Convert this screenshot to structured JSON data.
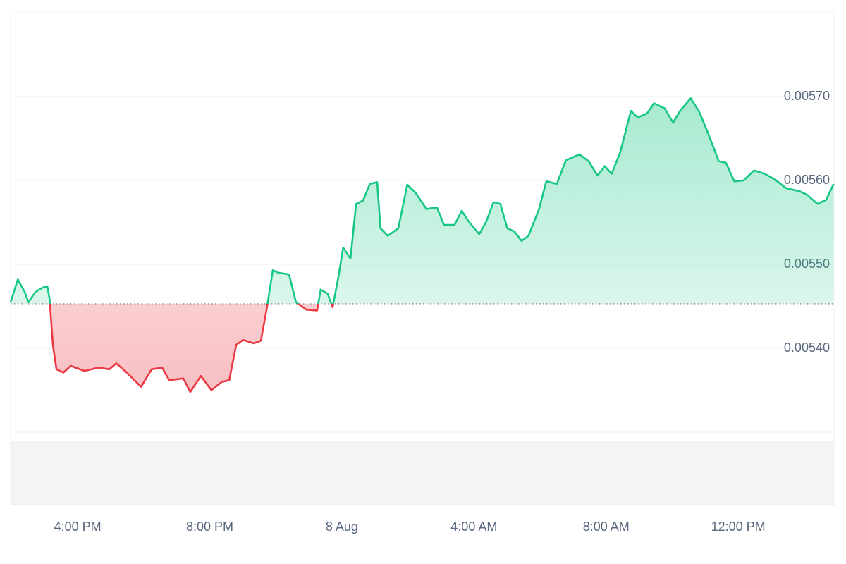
{
  "chart_data": {
    "type": "line",
    "x": [
      13.97,
      14.19,
      14.4,
      14.51,
      14.72,
      14.93,
      15.08,
      15.15,
      15.25,
      15.36,
      15.57,
      15.79,
      16.21,
      16.64,
      16.96,
      17.17,
      17.49,
      17.92,
      18.24,
      18.56,
      18.77,
      19.2,
      19.41,
      19.73,
      20.05,
      20.37,
      20.59,
      20.8,
      21.01,
      21.33,
      21.55,
      21.72,
      21.91,
      22.08,
      22.4,
      22.61,
      22.93,
      23.25,
      23.36,
      23.57,
      23.72,
      23.89,
      24.04,
      24.26,
      24.43,
      24.64,
      24.85,
      25.07,
      25.17,
      25.39,
      25.71,
      25.98,
      26.24,
      26.56,
      26.88,
      27.09,
      27.41,
      27.63,
      27.84,
      28.16,
      28.37,
      28.59,
      28.8,
      29.01,
      29.23,
      29.44,
      29.65,
      29.97,
      30.19,
      30.51,
      30.78,
      31.19,
      31.47,
      31.74,
      31.96,
      32.17,
      32.43,
      32.75,
      32.96,
      33.24,
      33.45,
      33.77,
      34.03,
      34.24,
      34.56,
      34.82,
      35.09,
      35.41,
      35.63,
      35.88,
      36.16,
      36.48,
      36.8,
      37.12,
      37.44,
      37.87,
      38.08,
      38.4,
      38.66,
      38.89
    ],
    "values": [
      0.005455,
      0.005482,
      0.005467,
      0.005455,
      0.005467,
      0.005472,
      0.005474,
      0.005459,
      0.005404,
      0.005375,
      0.005371,
      0.005379,
      0.005373,
      0.005377,
      0.005375,
      0.005382,
      0.005371,
      0.005354,
      0.005375,
      0.005377,
      0.005362,
      0.005364,
      0.005348,
      0.005367,
      0.00535,
      0.00536,
      0.005362,
      0.005404,
      0.00541,
      0.005406,
      0.005409,
      0.005446,
      0.005493,
      0.00549,
      0.005488,
      0.005455,
      0.005446,
      0.005445,
      0.00547,
      0.005465,
      0.005449,
      0.005484,
      0.00552,
      0.005507,
      0.005572,
      0.005576,
      0.005596,
      0.005598,
      0.005543,
      0.005534,
      0.005543,
      0.005595,
      0.005585,
      0.005566,
      0.005568,
      0.005547,
      0.005547,
      0.005564,
      0.005551,
      0.005536,
      0.005551,
      0.005574,
      0.005572,
      0.005543,
      0.005539,
      0.005528,
      0.005534,
      0.005566,
      0.005599,
      0.005596,
      0.005624,
      0.005631,
      0.005623,
      0.005606,
      0.005617,
      0.005608,
      0.005634,
      0.005683,
      0.005675,
      0.00568,
      0.005692,
      0.005686,
      0.005669,
      0.005683,
      0.005698,
      0.005682,
      0.005656,
      0.005623,
      0.005621,
      0.005599,
      0.0056,
      0.005612,
      0.005608,
      0.005601,
      0.005591,
      0.005587,
      0.005583,
      0.005572,
      0.005577,
      0.005596
    ],
    "baseline": 0.005453,
    "up_color": "#16c784",
    "down_color": "#ea3943",
    "xlim": [
      13.97,
      38.9
    ],
    "xticks": [
      {
        "value": 16,
        "label": "4:00 PM"
      },
      {
        "value": 20,
        "label": "8:00 PM"
      },
      {
        "value": 24,
        "label": "8 Aug"
      },
      {
        "value": 28,
        "label": "4:00 AM"
      },
      {
        "value": 32,
        "label": "8:00 AM"
      },
      {
        "value": 36,
        "label": "12:00 PM"
      }
    ],
    "ylim": [
      0.0053,
      0.0058
    ],
    "yticks": [
      {
        "value": 0.0054,
        "label": "0.00540"
      },
      {
        "value": 0.0055,
        "label": "0.00550"
      },
      {
        "value": 0.0056,
        "label": "0.00560"
      },
      {
        "value": 0.0057,
        "label": "0.00570"
      }
    ],
    "grid": true
  }
}
